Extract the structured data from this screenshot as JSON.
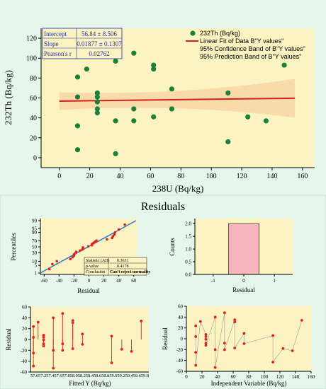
{
  "chart_data": [
    {
      "type": "scatter",
      "xlabel": "238U (Bq/kg)",
      "ylabel": "232Th (Bq/kg)",
      "xlim": [
        -12,
        168
      ],
      "ylim": [
        -10,
        130
      ],
      "xticks": [
        0,
        20,
        40,
        60,
        80,
        100,
        120,
        140,
        160
      ],
      "yticks": [
        0,
        20,
        40,
        60,
        80,
        100,
        120
      ],
      "points": [
        [
          12,
          81
        ],
        [
          12,
          61
        ],
        [
          12,
          32
        ],
        [
          12,
          8
        ],
        [
          18,
          89
        ],
        [
          25,
          65
        ],
        [
          25,
          61
        ],
        [
          25,
          56
        ],
        [
          25,
          49
        ],
        [
          25,
          45
        ],
        [
          37,
          97
        ],
        [
          37,
          37
        ],
        [
          37,
          4
        ],
        [
          49,
          105
        ],
        [
          49,
          49
        ],
        [
          49,
          37
        ],
        [
          62,
          93
        ],
        [
          62,
          89
        ],
        [
          62,
          41
        ],
        [
          74,
          69
        ],
        [
          74,
          49
        ],
        [
          111,
          65
        ],
        [
          111,
          16
        ],
        [
          124,
          41
        ],
        [
          136,
          37
        ],
        [
          148,
          93
        ]
      ],
      "fit": {
        "x": [
          0,
          155
        ],
        "y": [
          56.84,
          59.75
        ]
      },
      "stats": {
        "rows": [
          {
            "label": "Intercept",
            "value": "56.84 ± 8.506"
          },
          {
            "label": "Slope",
            "value": "0.01877 ± 0.1307"
          },
          {
            "label": "Pearson's r",
            "value": "0.02762"
          }
        ]
      },
      "legend": {
        "position": "top-right",
        "entries": [
          "232Th (Bq/kg)",
          "Linear Fit of Data B\"Y values\"",
          "95% Confidence Band of B\"Y values\"",
          "95% Prediction Band of B\"Y values\""
        ]
      },
      "colors": {
        "points": "#1c7f3a",
        "fit": "#d81e1e",
        "band": "#f7d8a6",
        "plot_bg": "#fbf3c2"
      }
    },
    {
      "type": "scatter",
      "title": "Residuals",
      "xlabel": "Residual",
      "ylabel": "Percentiles",
      "xlim": [
        -65,
        65
      ],
      "xticks": [
        -60,
        -40,
        -20,
        0,
        20,
        40,
        60
      ],
      "yticks": [
        "1",
        "5",
        "10",
        "30",
        "50",
        "70",
        "90",
        "95",
        "99"
      ],
      "ytick_pct": [
        1,
        5,
        10,
        30,
        50,
        70,
        90,
        95,
        99
      ],
      "residuals": [
        24,
        4,
        -25,
        -49,
        32,
        8,
        4,
        -1,
        -8,
        -12,
        40,
        -20,
        -53,
        48,
        -8,
        -20,
        35,
        31,
        -17,
        10,
        -9,
        6,
        -43,
        -18,
        -22,
        34
      ],
      "normality_test": {
        "rows": [
          {
            "label": "Statistic (AD)",
            "value": "0.3631"
          },
          {
            "label": "p-value",
            "value": "0.4178"
          },
          {
            "label": "Conclusion",
            "value": "Can't reject normality"
          }
        ]
      }
    },
    {
      "type": "bar",
      "xlabel": "Residual",
      "ylabel": "Counts",
      "xlim": [
        -1.6,
        1.6
      ],
      "ylim": [
        0,
        2.2
      ],
      "xticks": [
        "-1",
        "0",
        "1"
      ],
      "yticks": [
        "0.0",
        "0.5",
        "1.0",
        "1.5",
        "2.0"
      ],
      "bar": {
        "x_from": -0.5,
        "x_to": 0.5,
        "value": 2
      }
    },
    {
      "type": "scatter",
      "xlabel": "Fitted Y (Bq/kg)",
      "ylabel": "Residual",
      "ylim": [
        -60,
        60
      ],
      "yticks": [
        -60,
        -40,
        -20,
        0,
        20,
        40,
        60
      ],
      "xtick_text": "57.057.257.457.657.858.058.258.458.658.859.059.259.459.659.8",
      "xlim": [
        57.0,
        59.8
      ],
      "fitted": [
        57.07,
        57.07,
        57.07,
        57.07,
        57.18,
        57.31,
        57.31,
        57.31,
        57.31,
        57.31,
        57.54,
        57.54,
        57.54,
        57.76,
        57.76,
        57.76,
        58.0,
        58.0,
        58.0,
        58.23,
        58.23,
        58.92,
        58.92,
        59.16,
        59.39,
        59.62
      ]
    },
    {
      "type": "scatter",
      "xlabel": "Independent Variable (Bq/kg)",
      "ylabel": "Residual",
      "xlim": [
        0,
        160
      ],
      "ylim": [
        -60,
        60
      ],
      "xticks": [
        0,
        20,
        40,
        60,
        80,
        100,
        120,
        140,
        160
      ],
      "yticks": [
        -60,
        -40,
        -20,
        0,
        20,
        40,
        60
      ]
    }
  ]
}
